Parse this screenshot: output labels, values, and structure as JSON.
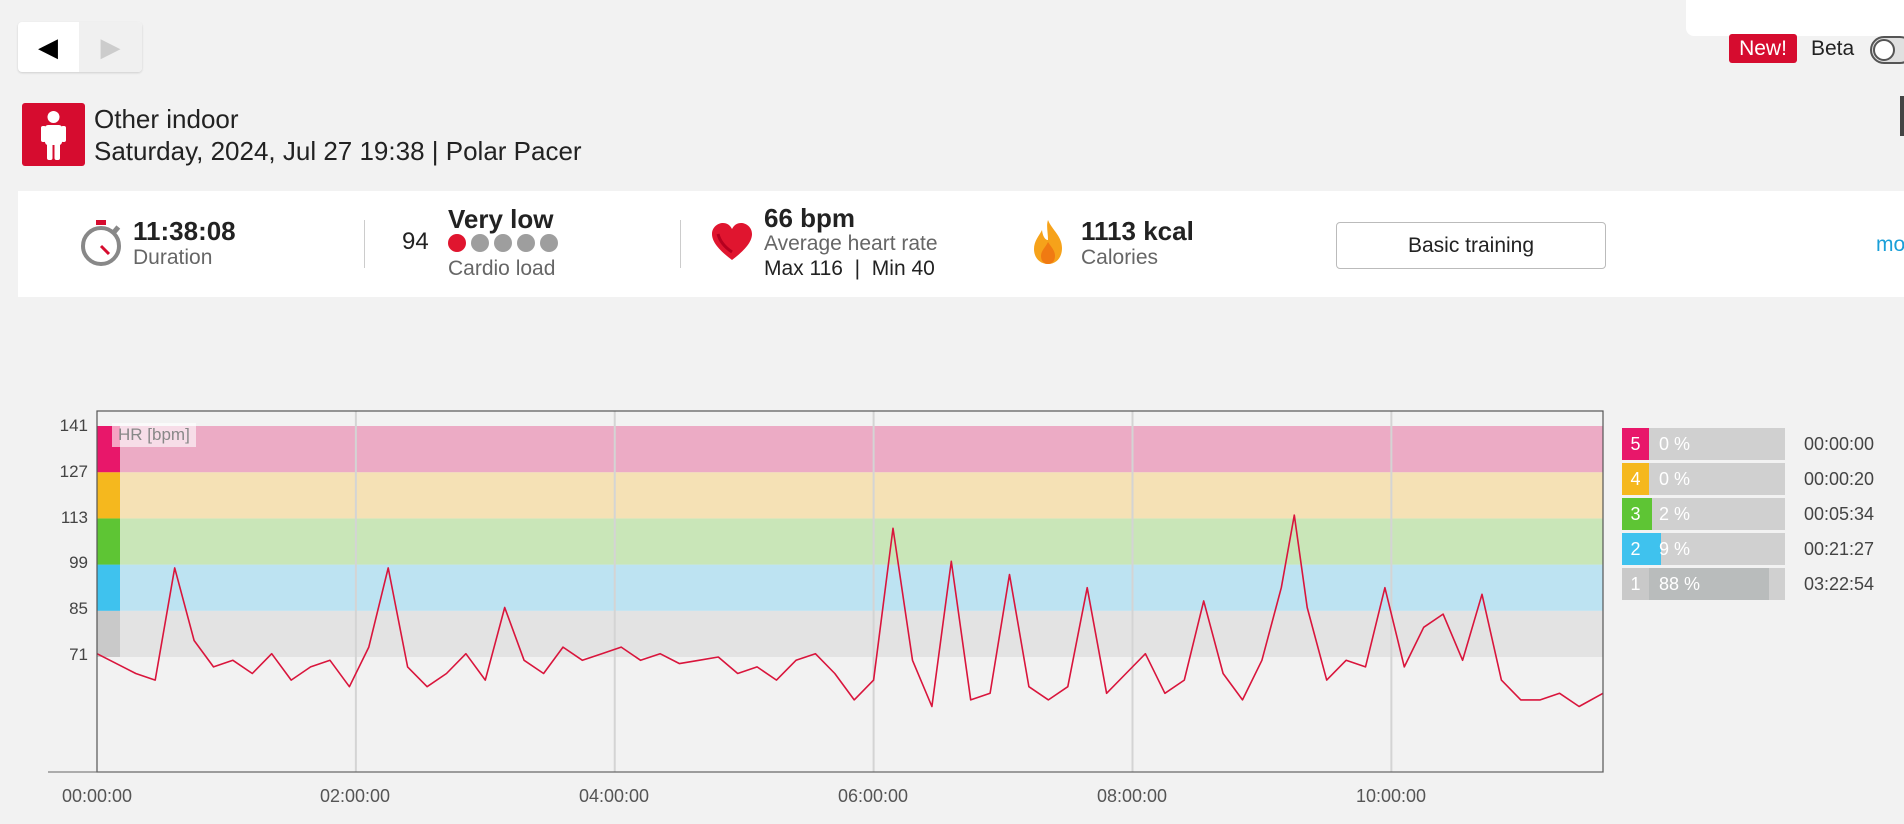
{
  "nav": {
    "prev_icon": "◀",
    "next_icon": "▶"
  },
  "header": {
    "new_badge": "New!",
    "beta_label": "Beta",
    "title": "Other indoor",
    "subtitle": "Saturday, 2024, Jul 27 19:38 | Polar Pacer"
  },
  "summary": {
    "duration": {
      "value": "11:38:08",
      "label": "Duration"
    },
    "cardio": {
      "score": "94",
      "value": "Very low",
      "label": "Cardio load",
      "level": 1,
      "max_level": 5
    },
    "heart": {
      "value": "66 bpm",
      "label": "Average heart rate",
      "max_min": "Max 116  |  Min 40"
    },
    "calories": {
      "value": "1113 kcal",
      "label": "Calories"
    },
    "benefit_button": "Basic training",
    "more_link": "mo"
  },
  "colors": {
    "accent": "#d60c2f",
    "zone5": "#e8176a",
    "zone4": "#f5b81e",
    "zone3": "#5ec534",
    "zone2": "#3fc2ee",
    "zone1": "#c9c9c9",
    "zone5_band": "#ecabc5",
    "zone4_band": "#f5e1b5",
    "zone3_band": "#c9e6b8",
    "zone2_band": "#bde3f2",
    "zone1_band": "#e3e3e3",
    "hr_line": "#d9153c"
  },
  "chart_data": {
    "type": "line",
    "ylabel": "HR [bpm]",
    "y_ticks": [
      "141",
      "127",
      "113",
      "99",
      "85",
      "71"
    ],
    "x_ticks": [
      "00:00:00",
      "02:00:00",
      "04:00:00",
      "06:00:00",
      "08:00:00",
      "10:00:00"
    ],
    "zone_bounds_bpm": [
      71,
      85,
      99,
      113,
      127,
      141
    ],
    "duration_hours": 11.635,
    "series": [
      {
        "x_hours": [
          0,
          0.3,
          0.45,
          0.6,
          0.75,
          0.9,
          1.05,
          1.2,
          1.35,
          1.5,
          1.65,
          1.8,
          1.95,
          2.1,
          2.25,
          2.4,
          2.55,
          2.7,
          2.85,
          3.0,
          3.15,
          3.3,
          3.45,
          3.6,
          3.75,
          3.9,
          4.05,
          4.2,
          4.35,
          4.5,
          4.65,
          4.8,
          4.95,
          5.1,
          5.25,
          5.4,
          5.55,
          5.7,
          5.85,
          6.0,
          6.15,
          6.3,
          6.45,
          6.6,
          6.75,
          6.9,
          7.05,
          7.2,
          7.35,
          7.5,
          7.65,
          7.8,
          7.95,
          8.1,
          8.25,
          8.4,
          8.55,
          8.7,
          8.85,
          9.0,
          9.15,
          9.25,
          9.35,
          9.5,
          9.65,
          9.8,
          9.95,
          10.1,
          10.25,
          10.4,
          10.55,
          10.7,
          10.85,
          11.0,
          11.15,
          11.3,
          11.45,
          11.635
        ],
        "values": [
          72,
          66,
          64,
          98,
          76,
          68,
          70,
          66,
          72,
          64,
          68,
          70,
          62,
          74,
          98,
          68,
          62,
          66,
          72,
          64,
          86,
          70,
          66,
          74,
          70,
          72,
          74,
          70,
          72,
          69,
          70,
          71,
          66,
          68,
          64,
          70,
          72,
          66,
          58,
          64,
          110,
          70,
          56,
          100,
          58,
          60,
          96,
          62,
          58,
          62,
          92,
          60,
          66,
          72,
          60,
          64,
          88,
          66,
          58,
          70,
          92,
          114,
          86,
          64,
          70,
          68,
          92,
          68,
          80,
          84,
          70,
          90,
          64,
          58,
          58,
          60,
          56,
          60
        ]
      }
    ],
    "zones": [
      {
        "zone": "5",
        "percent": "0 %",
        "time": "00:00:00",
        "fraction": 0.0
      },
      {
        "zone": "4",
        "percent": "0 %",
        "time": "00:00:20",
        "fraction": 0.0
      },
      {
        "zone": "3",
        "percent": "2 %",
        "time": "00:05:34",
        "fraction": 0.02
      },
      {
        "zone": "2",
        "percent": "9 %",
        "time": "00:21:27",
        "fraction": 0.09
      },
      {
        "zone": "1",
        "percent": "88 %",
        "time": "03:22:54",
        "fraction": 0.88
      }
    ]
  }
}
